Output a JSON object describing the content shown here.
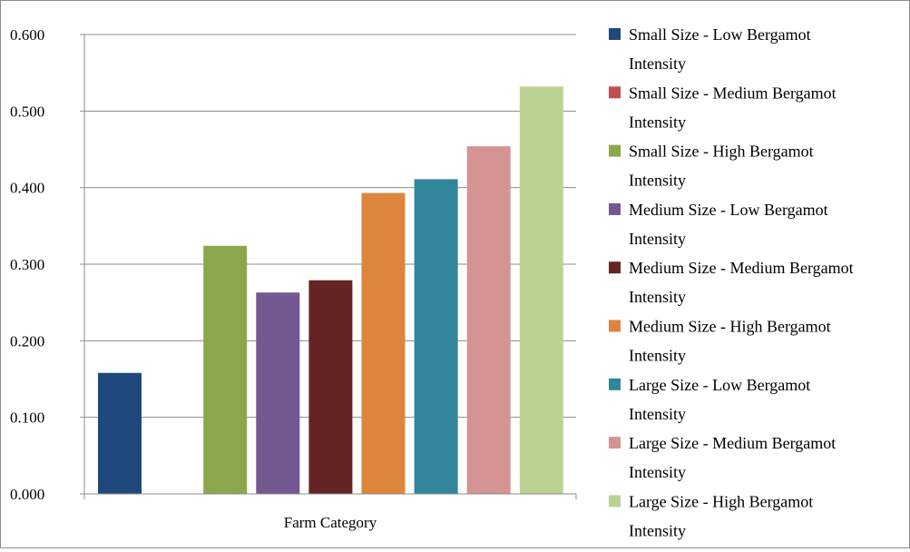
{
  "chart_data": {
    "type": "bar",
    "title": "",
    "xlabel": "Farm Category",
    "ylabel": "",
    "ylim": [
      0,
      0.6
    ],
    "yticks": [
      "0.000",
      "0.100",
      "0.200",
      "0.300",
      "0.400",
      "0.500",
      "0.600"
    ],
    "grid": true,
    "legend_position": "right",
    "categories": [
      "Farm Category"
    ],
    "series": [
      {
        "name": "Small Size - Low Bergamot Intensity",
        "values": [
          0.158
        ],
        "color": "#1f497d"
      },
      {
        "name": "Small Size - Medium Bergamot Intensity",
        "values": [
          0.0
        ],
        "color": "#c0504d"
      },
      {
        "name": "Small Size - High Bergamot Intensity",
        "values": [
          0.324
        ],
        "color": "#8aa84b"
      },
      {
        "name": "Medium Size - Low Bergamot Intensity",
        "values": [
          0.263
        ],
        "color": "#735891"
      },
      {
        "name": "Medium Size - Medium Bergamot Intensity",
        "values": [
          0.279
        ],
        "color": "#632423"
      },
      {
        "name": "Medium Size - High Bergamot Intensity",
        "values": [
          0.393
        ],
        "color": "#dd853d"
      },
      {
        "name": "Large Size - Low Bergamot Intensity",
        "values": [
          0.411
        ],
        "color": "#31869b"
      },
      {
        "name": "Large Size - Medium Bergamot Intensity",
        "values": [
          0.454
        ],
        "color": "#d59393"
      },
      {
        "name": "Large Size - High Bergamot Intensity",
        "values": [
          0.532
        ],
        "color": "#bcd293"
      }
    ]
  }
}
